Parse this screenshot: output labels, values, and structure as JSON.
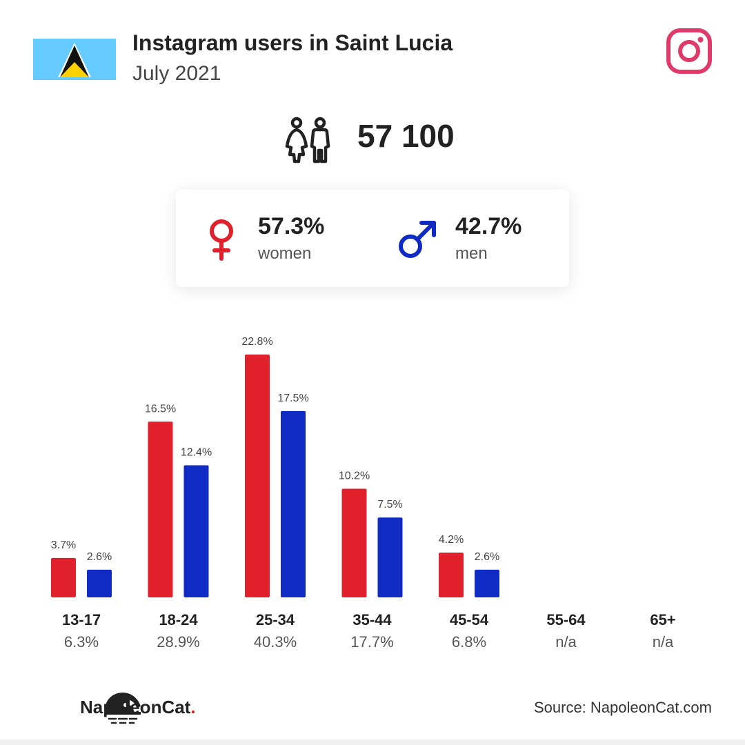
{
  "header": {
    "title": "Instagram users in Saint Lucia",
    "subtitle": "July 2021"
  },
  "icons": {
    "flag": "saint-lucia-flag",
    "platform": "instagram-icon",
    "people": "people-icon",
    "female": "female-symbol-icon",
    "male": "male-symbol-icon",
    "brand": "napoleoncat-logo"
  },
  "colors": {
    "women": "#e0202a",
    "men": "#0f2bc4",
    "instagram": "#e03a6a",
    "flag_sky": "#66ccff"
  },
  "total_users": "57 100",
  "gender": {
    "women_pct": "57.3%",
    "women_label": "women",
    "men_pct": "42.7%",
    "men_label": "men"
  },
  "chart_data": {
    "type": "bar",
    "categories": [
      "13-17",
      "18-24",
      "25-34",
      "35-44",
      "45-54",
      "55-64",
      "65+"
    ],
    "category_totals": [
      "6.3%",
      "28.9%",
      "40.3%",
      "17.7%",
      "6.8%",
      "n/a",
      "n/a"
    ],
    "series": [
      {
        "name": "women",
        "values": [
          3.7,
          16.5,
          22.8,
          10.2,
          4.2,
          null,
          null
        ],
        "labels": [
          "3.7%",
          "16.5%",
          "22.8%",
          "10.2%",
          "4.2%",
          null,
          null
        ]
      },
      {
        "name": "men",
        "values": [
          2.6,
          12.4,
          17.5,
          7.5,
          2.6,
          null,
          null
        ],
        "labels": [
          "2.6%",
          "12.4%",
          "17.5%",
          "7.5%",
          "2.6%",
          null,
          null
        ]
      }
    ],
    "ylim": [
      0,
      22.8
    ],
    "grid": false,
    "legend": "none"
  },
  "footer": {
    "brand_name": "NapoleonCat",
    "brand_dot": ".",
    "source": "Source: NapoleonCat.com"
  }
}
